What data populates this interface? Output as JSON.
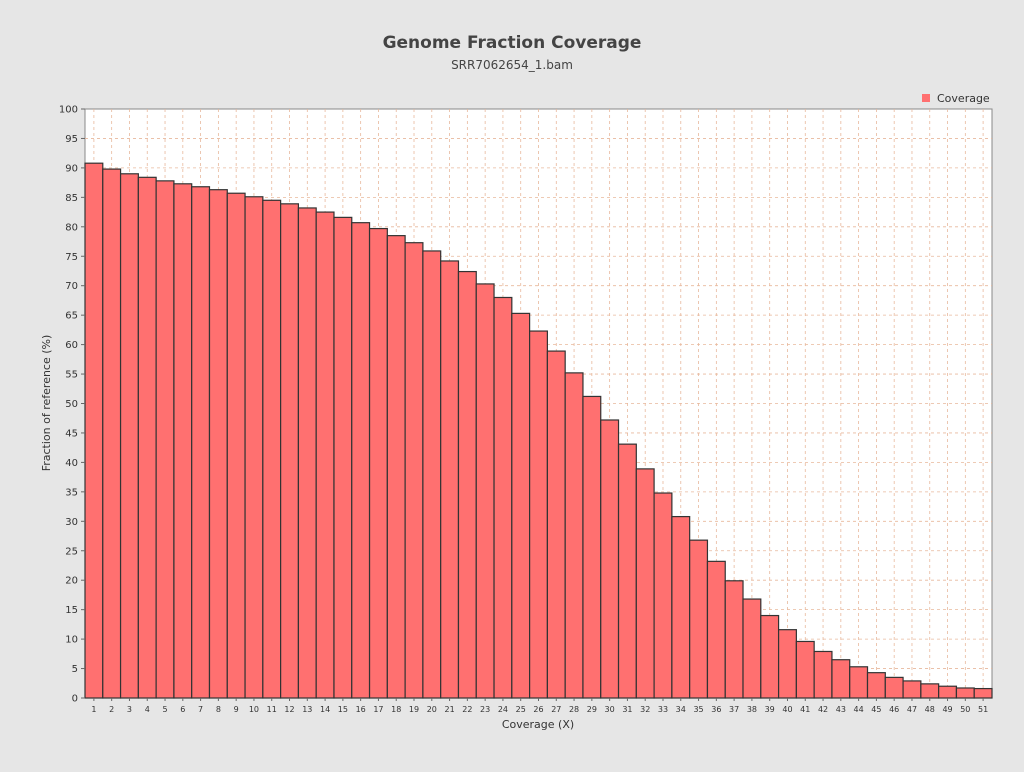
{
  "chart_data": {
    "type": "bar",
    "title": "Genome Fraction Coverage",
    "subtitle": "SRR7062654_1.bam",
    "xlabel": "Coverage (X)",
    "ylabel": "Fraction of reference (%)",
    "ylim": [
      0,
      100
    ],
    "yticks": [
      0,
      5,
      10,
      15,
      20,
      25,
      30,
      35,
      40,
      45,
      50,
      55,
      60,
      65,
      70,
      75,
      80,
      85,
      90,
      95,
      100
    ],
    "grid": true,
    "legend_position": "top-right",
    "categories": [
      "1",
      "2",
      "3",
      "4",
      "5",
      "6",
      "7",
      "8",
      "9",
      "10",
      "11",
      "12",
      "13",
      "14",
      "15",
      "16",
      "17",
      "18",
      "19",
      "20",
      "21",
      "22",
      "23",
      "24",
      "25",
      "26",
      "27",
      "28",
      "29",
      "30",
      "31",
      "32",
      "33",
      "34",
      "35",
      "36",
      "37",
      "38",
      "39",
      "40",
      "41",
      "42",
      "43",
      "44",
      "45",
      "46",
      "47",
      "48",
      "49",
      "50",
      "51"
    ],
    "series": [
      {
        "name": "Coverage",
        "color": "#ff7070",
        "values": [
          90.8,
          89.8,
          89.0,
          88.4,
          87.8,
          87.3,
          86.8,
          86.3,
          85.7,
          85.1,
          84.5,
          83.9,
          83.2,
          82.5,
          81.6,
          80.7,
          79.7,
          78.5,
          77.3,
          75.9,
          74.2,
          72.4,
          70.3,
          68.0,
          65.3,
          62.3,
          58.9,
          55.2,
          51.2,
          47.2,
          43.1,
          38.9,
          34.8,
          30.8,
          26.8,
          23.2,
          19.9,
          16.8,
          14.0,
          11.6,
          9.6,
          7.9,
          6.5,
          5.3,
          4.3,
          3.5,
          2.9,
          2.4,
          2.0,
          1.7,
          1.6
        ]
      }
    ]
  },
  "colors": {
    "background": "#e6e6e6",
    "plot_background": "#ffffff",
    "grid": "#e8b89c",
    "bar_fill": "#ff7070",
    "bar_stroke": "#333333"
  }
}
